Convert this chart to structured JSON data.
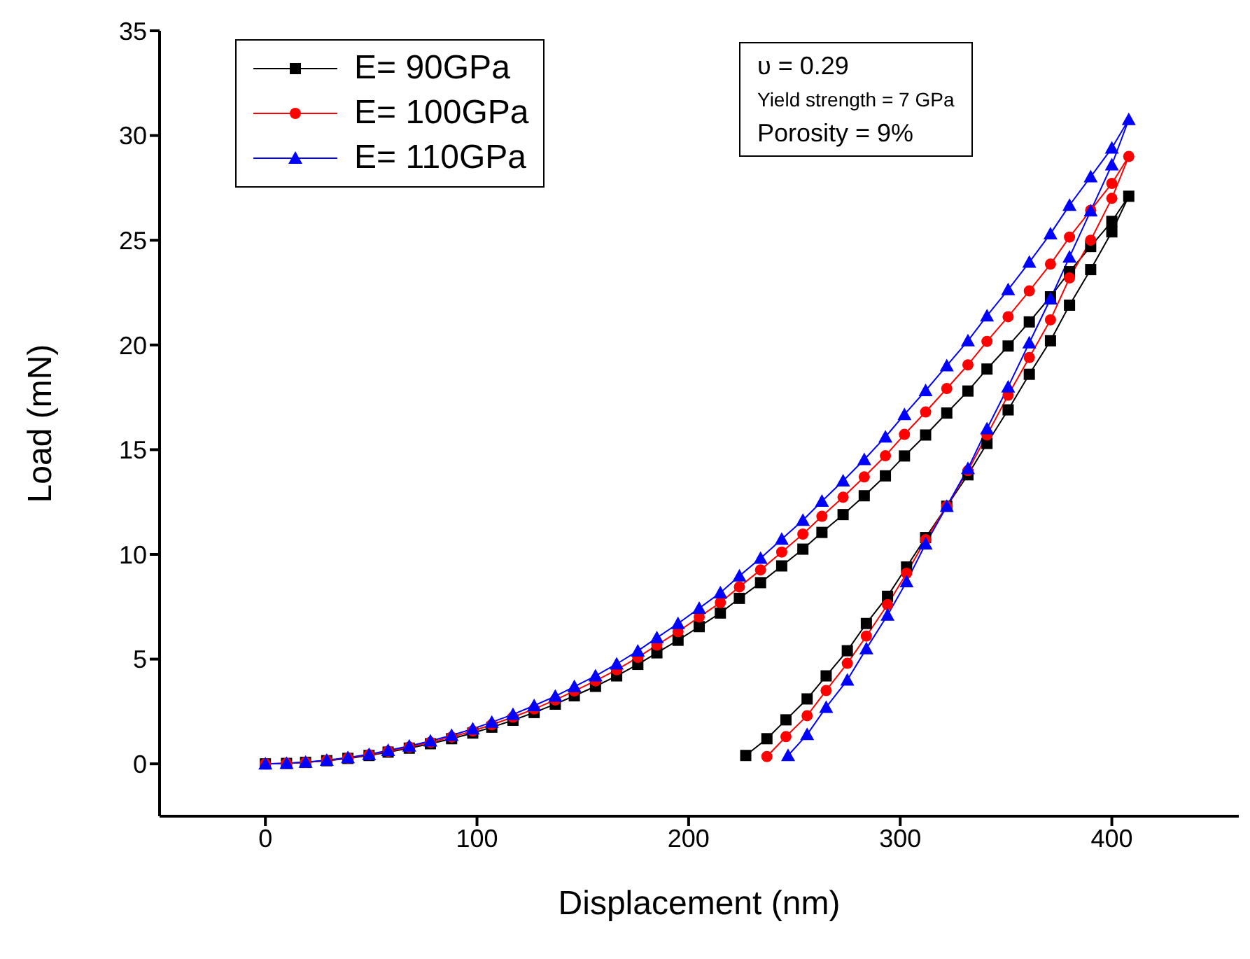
{
  "chart_data": {
    "type": "line",
    "xlabel": "Displacement (nm)",
    "ylabel": "Load (mN)",
    "xlim": [
      -50,
      460
    ],
    "xticks": [
      0,
      100,
      200,
      300,
      400
    ],
    "ylim": [
      -2.5,
      35
    ],
    "yticks": [
      0,
      5,
      10,
      15,
      20,
      25,
      30,
      35
    ],
    "grid": false,
    "legend": "top left",
    "line_style": "solid",
    "annotations": [
      "υ =  0.29",
      "Yield strength = 7 GPa",
      "Porosity =  9%"
    ],
    "series": [
      {
        "name": "E= 90GPa",
        "color": "#000000",
        "marker": "square",
        "x": [
          0,
          10,
          19,
          29,
          39,
          49,
          58,
          68,
          78,
          88,
          98,
          107,
          117,
          127,
          137,
          146,
          156,
          166,
          176,
          185,
          195,
          205,
          215,
          224,
          234,
          244,
          254,
          263,
          273,
          283,
          293,
          302,
          312,
          322,
          332,
          341,
          351,
          361,
          371,
          380,
          390,
          400,
          408,
          400,
          390,
          380,
          371,
          361,
          351,
          341,
          332,
          322,
          312,
          303,
          294,
          284,
          275,
          265,
          256,
          246,
          237,
          227
        ],
        "values": [
          0,
          0.02,
          0.07,
          0.15,
          0.26,
          0.4,
          0.56,
          0.75,
          0.96,
          1.2,
          1.47,
          1.75,
          2.08,
          2.45,
          2.85,
          3.25,
          3.7,
          4.2,
          4.75,
          5.3,
          5.9,
          6.55,
          7.2,
          7.9,
          8.65,
          9.45,
          10.25,
          11.05,
          11.9,
          12.8,
          13.75,
          14.7,
          15.7,
          16.75,
          17.8,
          18.85,
          19.95,
          21.1,
          22.3,
          23.5,
          24.7,
          25.9,
          27.1,
          25.4,
          23.6,
          21.9,
          20.2,
          18.6,
          16.9,
          15.3,
          13.8,
          12.3,
          10.8,
          9.4,
          8.0,
          6.7,
          5.4,
          4.2,
          3.1,
          2.1,
          1.2,
          0.4
        ]
      },
      {
        "name": "E= 100GPa",
        "color": "#ff0000",
        "marker": "circle",
        "x": [
          0,
          10,
          19,
          29,
          39,
          49,
          58,
          68,
          78,
          88,
          98,
          107,
          117,
          127,
          137,
          146,
          156,
          166,
          176,
          185,
          195,
          205,
          215,
          224,
          234,
          244,
          254,
          263,
          273,
          283,
          293,
          302,
          312,
          322,
          332,
          341,
          351,
          361,
          371,
          380,
          390,
          400,
          408,
          400,
          390,
          380,
          371,
          361,
          351,
          341,
          332,
          322,
          312,
          303,
          294,
          284,
          275,
          265,
          256,
          246,
          237
        ],
        "values": [
          0,
          0.02,
          0.07,
          0.16,
          0.28,
          0.43,
          0.6,
          0.8,
          1.03,
          1.28,
          1.57,
          1.87,
          2.23,
          2.62,
          3.05,
          3.48,
          3.96,
          4.49,
          5.08,
          5.67,
          6.31,
          7.01,
          7.7,
          8.45,
          9.26,
          10.11,
          10.97,
          11.82,
          12.73,
          13.7,
          14.71,
          15.73,
          16.8,
          17.92,
          19.05,
          20.17,
          21.35,
          22.58,
          23.86,
          25.15,
          26.43,
          27.71,
          29.0,
          27.0,
          25.0,
          23.2,
          21.2,
          19.4,
          17.6,
          15.7,
          14.0,
          12.3,
          10.7,
          9.1,
          7.6,
          6.1,
          4.8,
          3.5,
          2.3,
          1.3,
          0.35
        ]
      },
      {
        "name": "E= 110GPa",
        "color": "#0000ff",
        "marker": "triangle",
        "x": [
          0,
          10,
          19,
          29,
          39,
          49,
          58,
          68,
          78,
          88,
          98,
          107,
          117,
          127,
          137,
          146,
          156,
          166,
          176,
          185,
          195,
          205,
          215,
          224,
          234,
          244,
          254,
          263,
          273,
          283,
          293,
          302,
          312,
          322,
          332,
          341,
          351,
          361,
          371,
          380,
          390,
          400,
          408,
          400,
          390,
          380,
          371,
          361,
          351,
          341,
          332,
          322,
          312,
          303,
          294,
          284,
          275,
          265,
          256,
          247
        ],
        "values": [
          0,
          0.02,
          0.08,
          0.17,
          0.3,
          0.45,
          0.64,
          0.85,
          1.09,
          1.36,
          1.67,
          1.99,
          2.36,
          2.78,
          3.23,
          3.69,
          4.2,
          4.77,
          5.39,
          6.02,
          6.7,
          7.43,
          8.17,
          8.97,
          9.82,
          10.73,
          11.63,
          12.54,
          13.51,
          14.53,
          15.61,
          16.68,
          17.82,
          19.01,
          20.2,
          21.39,
          22.64,
          23.95,
          25.31,
          26.67,
          28.03,
          29.4,
          30.76,
          28.6,
          26.4,
          24.2,
          22.2,
          20.1,
          18.0,
          16.0,
          14.1,
          12.3,
          10.5,
          8.7,
          7.1,
          5.5,
          4.0,
          2.7,
          1.4,
          0.4
        ]
      }
    ]
  }
}
